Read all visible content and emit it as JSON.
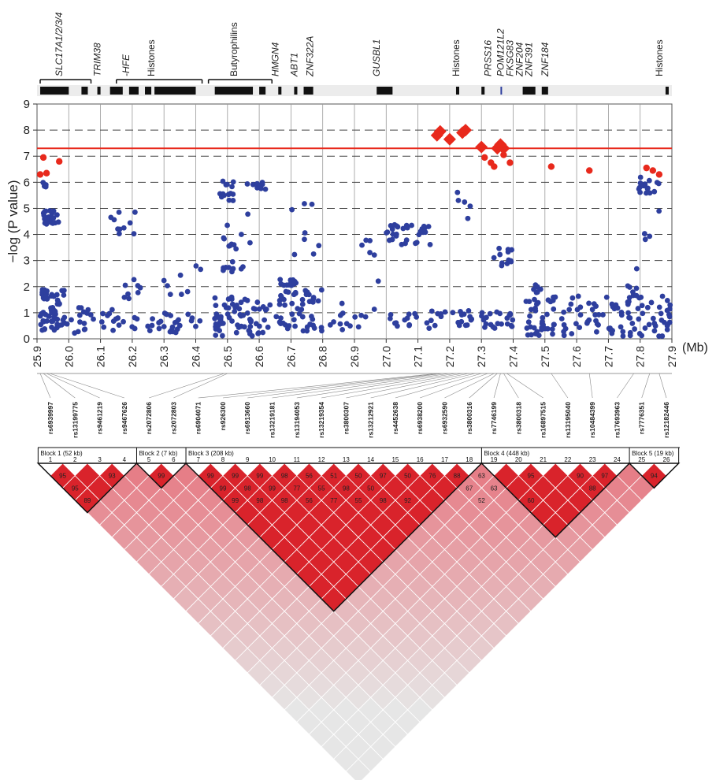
{
  "chart_data": {
    "type": "scatter",
    "xlabel": "(Mb)",
    "ylabel": "−log (P value)",
    "xlim": [
      25.9,
      27.9
    ],
    "ylim": [
      0,
      9
    ],
    "x_ticks": [
      "25.9",
      "26.0",
      "26.1",
      "26.2",
      "26.3",
      "26.4",
      "26.5",
      "26.6",
      "26.7",
      "26.8",
      "26.9",
      "27.0",
      "27.1",
      "27.2",
      "27.3",
      "27.4",
      "27.5",
      "27.6",
      "27.7",
      "27.8",
      "27.9"
    ],
    "y_ticks": [
      "0",
      "1",
      "2",
      "3",
      "4",
      "5",
      "6",
      "7",
      "8",
      "9"
    ],
    "threshold_line": 7.3,
    "colors": {
      "blue_points": "#2e3f9e",
      "red_points": "#e8291c",
      "threshold": "#e8291c",
      "grid": "#9a9a9a"
    },
    "genes": [
      {
        "name": "SLC17A1/2/3/4",
        "italic": true,
        "x": 25.97,
        "bracket": [
          25.91,
          26.07
        ]
      },
      {
        "name": "TRIM38",
        "italic": true,
        "x": 26.09
      },
      {
        "name": "-HFE",
        "italic": true,
        "x": 26.18
      },
      {
        "name": "Histones",
        "italic": false,
        "x": 26.26,
        "bracket": [
          26.15,
          26.42
        ]
      },
      {
        "name": "Butyrophilins",
        "italic": false,
        "x": 26.52,
        "bracket": [
          26.44,
          26.64
        ]
      },
      {
        "name": "HMGN4",
        "italic": true,
        "x": 26.65
      },
      {
        "name": "ABT1",
        "italic": true,
        "x": 26.71
      },
      {
        "name": "ZNF322A",
        "italic": true,
        "x": 26.76
      },
      {
        "name": "GUSBL1",
        "italic": true,
        "x": 26.97
      },
      {
        "name": "Histones",
        "italic": false,
        "x": 27.22
      },
      {
        "name": "PRSS16",
        "italic": true,
        "x": 27.32
      },
      {
        "name": "POM121L2",
        "italic": true,
        "x": 27.36
      },
      {
        "name": "FKSG83",
        "italic": true,
        "x": 27.39
      },
      {
        "name": "ZNF204",
        "italic": true,
        "x": 27.42
      },
      {
        "name": "ZNF391",
        "italic": true,
        "x": 27.45
      },
      {
        "name": "ZNF184",
        "italic": true,
        "x": 27.5
      },
      {
        "name": "Histones",
        "italic": false,
        "x": 27.86
      }
    ],
    "red_snps": [
      {
        "x": 25.91,
        "y": 6.3
      },
      {
        "x": 25.93,
        "y": 6.35
      },
      {
        "x": 25.92,
        "y": 6.95
      },
      {
        "x": 25.97,
        "y": 6.8
      },
      {
        "x": 27.31,
        "y": 6.95
      },
      {
        "x": 27.33,
        "y": 6.75
      },
      {
        "x": 27.34,
        "y": 6.6
      },
      {
        "x": 27.37,
        "y": 7.05
      },
      {
        "x": 27.39,
        "y": 6.75
      },
      {
        "x": 27.52,
        "y": 6.6
      },
      {
        "x": 27.64,
        "y": 6.45
      },
      {
        "x": 27.82,
        "y": 6.55
      },
      {
        "x": 27.84,
        "y": 6.45
      },
      {
        "x": 27.86,
        "y": 6.3
      }
    ],
    "red_diamonds": [
      {
        "x": 27.16,
        "y": 7.8
      },
      {
        "x": 27.17,
        "y": 7.95
      },
      {
        "x": 27.2,
        "y": 7.65
      },
      {
        "x": 27.24,
        "y": 7.9
      },
      {
        "x": 27.25,
        "y": 8.0
      },
      {
        "x": 27.3,
        "y": 7.35
      },
      {
        "x": 27.35,
        "y": 7.3
      },
      {
        "x": 27.36,
        "y": 7.45
      },
      {
        "x": 27.37,
        "y": 7.3
      }
    ],
    "snp_labels": [
      "rs6939997",
      "rs13199775",
      "rs9461219",
      "rs9467626",
      "rs2072806",
      "rs2072803",
      "rs6904071",
      "rs926300",
      "rs6913660",
      "rs13219181",
      "rs13194053",
      "rs13219354",
      "rs3800307",
      "rs13212921",
      "rs4452638",
      "rs6938200",
      "rs6932590",
      "rs3800316",
      "rs7746199",
      "rs3800318",
      "rs16897515",
      "rs13195040",
      "rs10484399",
      "rs17693963",
      "rs7776351",
      "rs12182446"
    ],
    "ld_blocks": [
      {
        "label": "Block 1 (52 kb)",
        "start": 1,
        "end": 4
      },
      {
        "label": "Block 2 (7 kb)",
        "start": 5,
        "end": 6
      },
      {
        "label": "Block 3 (208 kb)",
        "start": 7,
        "end": 18
      },
      {
        "label": "Block 4 (448 kb)",
        "start": 19,
        "end": 24
      },
      {
        "label": "Block 5 (19 kb)",
        "start": 25,
        "end": 26
      }
    ],
    "ld_row1": [
      "95",
      "",
      "93",
      "",
      "99",
      "",
      "99",
      "99",
      "99",
      "98",
      "56",
      "51",
      "50",
      "97",
      "50",
      "76",
      "88",
      "63",
      "",
      "95",
      "",
      "90",
      "97",
      "",
      "94"
    ],
    "ld_row2": [
      "95",
      "",
      "",
      "",
      "",
      "",
      "99",
      "98",
      "99",
      "77",
      "55",
      "98",
      "50",
      "",
      "",
      "",
      "67",
      "63",
      "",
      "",
      "",
      "88",
      "",
      "",
      ""
    ],
    "ld_row3": [
      "89",
      "",
      "",
      "",
      "",
      "",
      "99",
      "98",
      "98",
      "56",
      "77",
      "55",
      "98",
      "92",
      "",
      "",
      "52",
      "",
      "60",
      "",
      "",
      "",
      "",
      "",
      ""
    ]
  }
}
